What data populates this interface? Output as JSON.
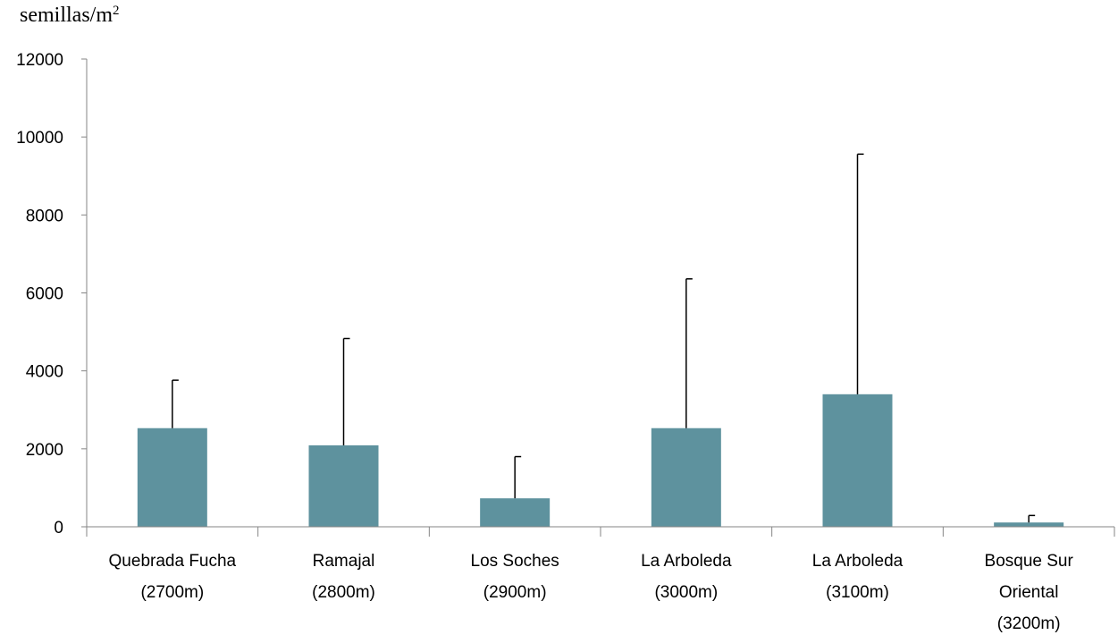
{
  "chart_data": {
    "type": "bar",
    "ylabel": "semillas/m",
    "ylabel_superscript": "2",
    "categories": [
      [
        "Quebrada Fucha",
        "(2700m)"
      ],
      [
        "Ramajal",
        "(2800m)"
      ],
      [
        "Los Soches",
        "(2900m)"
      ],
      [
        "La Arboleda",
        "(3000m)"
      ],
      [
        "La Arboleda",
        "(3100m)"
      ],
      [
        "Bosque Sur",
        "Oriental",
        "(3200m)"
      ]
    ],
    "values": [
      2530,
      2090,
      730,
      2530,
      3400,
      110
    ],
    "error_upper": [
      3760,
      4830,
      1800,
      6360,
      9560,
      290
    ],
    "ylim": [
      0,
      12000
    ],
    "yticks": [
      0,
      2000,
      4000,
      6000,
      8000,
      10000,
      12000
    ],
    "grid": false,
    "bar_color": "#5e929e",
    "legend": "none"
  }
}
